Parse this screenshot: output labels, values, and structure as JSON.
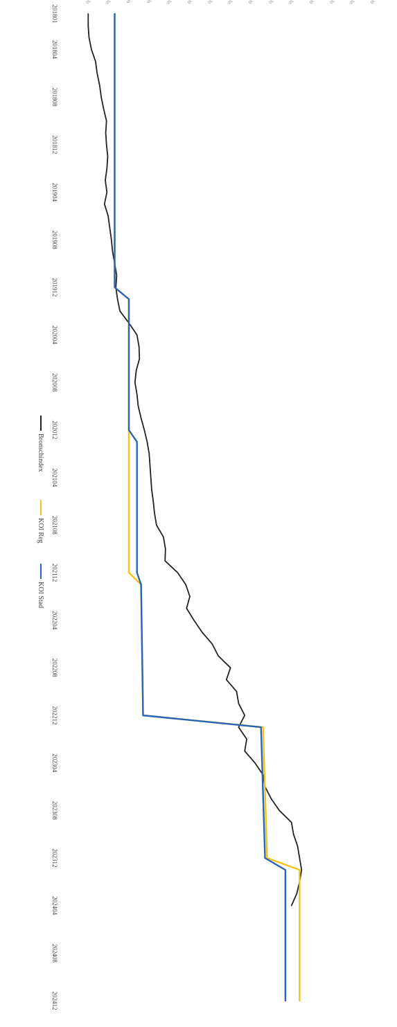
{
  "chart_data": {
    "type": "line",
    "title": "",
    "xlabel": "",
    "ylabel": "",
    "orientation": "rotated 90 degrees clockwise",
    "ylim": [
      95,
      170
    ],
    "y_ticks": [
      "95%",
      "100%",
      "105%",
      "110%",
      "115%",
      "120%",
      "125%",
      "130%",
      "135%",
      "140%",
      "145%",
      "150%",
      "155%",
      "160%",
      "165%",
      "170%"
    ],
    "x_ticks": [
      "201801",
      "201804",
      "201808",
      "201812",
      "201904",
      "201908",
      "201912",
      "202004",
      "202008",
      "202012",
      "202104",
      "202108",
      "202112",
      "202204",
      "202208",
      "202212",
      "202304",
      "202308",
      "202312",
      "202404",
      "202408",
      "202412"
    ],
    "x_range": [
      "2018-01",
      "2024-12"
    ],
    "grid": false,
    "legend_position": "bottom",
    "series": [
      {
        "name": "Bronschindex",
        "color": "#222222",
        "points": [
          [
            "2018-01",
            100.0
          ],
          [
            "2018-02",
            100.0
          ],
          [
            "2018-03",
            100.2
          ],
          [
            "2018-04",
            100.8
          ],
          [
            "2018-05",
            101.8
          ],
          [
            "2018-06",
            102.2
          ],
          [
            "2018-07",
            102.8
          ],
          [
            "2018-08",
            103.2
          ],
          [
            "2018-09",
            103.8
          ],
          [
            "2018-10",
            104.5
          ],
          [
            "2018-11",
            104.3
          ],
          [
            "2018-12",
            104.5
          ],
          [
            "2019-01",
            104.8
          ],
          [
            "2019-02",
            104.6
          ],
          [
            "2019-03",
            104.2
          ],
          [
            "2019-04",
            104.6
          ],
          [
            "2019-05",
            104.0
          ],
          [
            "2019-06",
            104.9
          ],
          [
            "2019-07",
            105.3
          ],
          [
            "2019-08",
            105.7
          ],
          [
            "2019-09",
            106.0
          ],
          [
            "2019-10",
            106.5
          ],
          [
            "2019-11",
            107.0
          ],
          [
            "2019-12",
            106.8
          ],
          [
            "2020-01",
            107.2
          ],
          [
            "2020-02",
            107.8
          ],
          [
            "2020-03",
            110.0
          ],
          [
            "2020-04",
            112.0
          ],
          [
            "2020-05",
            112.5
          ],
          [
            "2020-06",
            112.6
          ],
          [
            "2020-07",
            111.8
          ],
          [
            "2020-08",
            111.5
          ],
          [
            "2020-09",
            112.0
          ],
          [
            "2020-10",
            112.3
          ],
          [
            "2020-11",
            113.0
          ],
          [
            "2020-12",
            113.8
          ],
          [
            "2021-01",
            114.5
          ],
          [
            "2021-02",
            115.0
          ],
          [
            "2021-03",
            115.2
          ],
          [
            "2021-04",
            115.4
          ],
          [
            "2021-05",
            115.6
          ],
          [
            "2021-06",
            116.0
          ],
          [
            "2021-07",
            116.3
          ],
          [
            "2021-08",
            116.8
          ],
          [
            "2021-09",
            118.5
          ],
          [
            "2021-10",
            119.0
          ],
          [
            "2021-11",
            118.9
          ],
          [
            "2021-12",
            122.0
          ],
          [
            "2022-01",
            124.0
          ],
          [
            "2022-02",
            125.0
          ],
          [
            "2022-03",
            124.2
          ],
          [
            "2022-04",
            126.0
          ],
          [
            "2022-05",
            128.0
          ],
          [
            "2022-06",
            130.5
          ],
          [
            "2022-07",
            132.0
          ],
          [
            "2022-08",
            135.0
          ],
          [
            "2022-09",
            134.0
          ],
          [
            "2022-10",
            136.5
          ],
          [
            "2022-11",
            137.0
          ],
          [
            "2022-12",
            138.5
          ],
          [
            "2023-01",
            137.0
          ],
          [
            "2023-02",
            139.0
          ],
          [
            "2023-03",
            138.5
          ],
          [
            "2023-04",
            141.0
          ],
          [
            "2023-05",
            143.0
          ],
          [
            "2023-06",
            143.5
          ],
          [
            "2023-07",
            145.0
          ],
          [
            "2023-08",
            147.0
          ],
          [
            "2023-09",
            150.0
          ],
          [
            "2023-10",
            150.5
          ],
          [
            "2023-11",
            151.5
          ],
          [
            "2023-12",
            152.0
          ],
          [
            "2024-01",
            152.5
          ],
          [
            "2024-02",
            152.0
          ],
          [
            "2024-03",
            151.3
          ],
          [
            "2024-04",
            150.0
          ]
        ]
      },
      {
        "name": "KOI Reg",
        "color": "#f2c21a",
        "points": [
          [
            "2018-01",
            106.5
          ],
          [
            "2019-12",
            106.5
          ],
          [
            "2020-01",
            110.0
          ],
          [
            "2021-12",
            110.0
          ],
          [
            "2022-01",
            113.0
          ],
          [
            "2022-12",
            113.5
          ],
          [
            "2023-01",
            143.0
          ],
          [
            "2023-12",
            144.0
          ],
          [
            "2024-01",
            152.0
          ],
          [
            "2024-12",
            152.0
          ]
        ]
      },
      {
        "name": "KOI Stad",
        "color": "#2a64b4",
        "points": [
          [
            "2018-01",
            106.5
          ],
          [
            "2019-12",
            106.5
          ],
          [
            "2020-01",
            110.0
          ],
          [
            "2020-12",
            110.0
          ],
          [
            "2021-01",
            112.0
          ],
          [
            "2021-12",
            112.0
          ],
          [
            "2022-01",
            113.0
          ],
          [
            "2022-12",
            113.5
          ],
          [
            "2023-01",
            142.5
          ],
          [
            "2023-12",
            143.5
          ],
          [
            "2024-01",
            148.5
          ],
          [
            "2024-12",
            148.5
          ]
        ]
      }
    ]
  }
}
